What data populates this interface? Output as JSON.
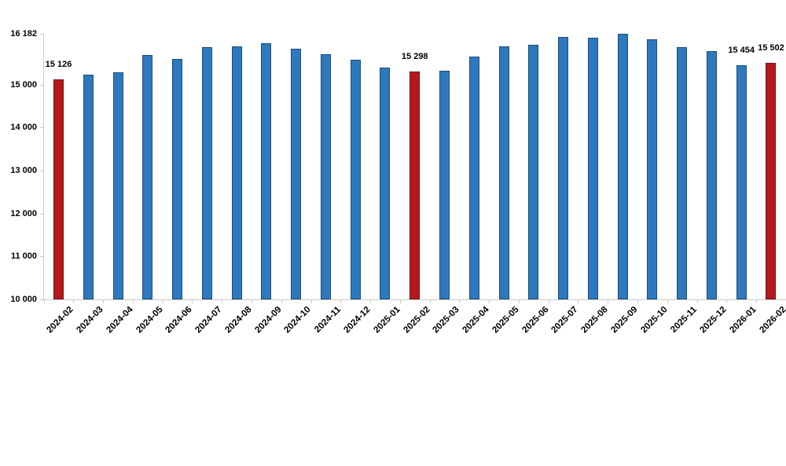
{
  "chart_data": {
    "type": "bar",
    "title": "",
    "xlabel": "",
    "ylabel": "",
    "grid": false,
    "legend": "none",
    "ylim": [
      10000,
      16182
    ],
    "categories": [
      "2024-02",
      "2024-03",
      "2024-04",
      "2024-05",
      "2024-06",
      "2024-07",
      "2024-08",
      "2024-09",
      "2024-10",
      "2024-11",
      "2024-12",
      "2025-01",
      "2025-02",
      "2025-03",
      "2025-04",
      "2025-05",
      "2025-06",
      "2025-07",
      "2025-08",
      "2025-09",
      "2025-10",
      "2025-11",
      "2025-12",
      "2026-01",
      "2026-02"
    ],
    "values": [
      15126,
      15225,
      15290,
      15680,
      15605,
      15880,
      15890,
      15970,
      15835,
      15715,
      15575,
      15390,
      15298,
      15330,
      15650,
      15895,
      15920,
      16105,
      16085,
      16182,
      16050,
      15880,
      15785,
      15454,
      15502
    ],
    "highlight_indices": [
      0,
      12,
      24
    ],
    "data_labels": [
      {
        "index": 0,
        "text": "15 126"
      },
      {
        "index": 12,
        "text": "15 298"
      },
      {
        "index": 23,
        "text": "15 454"
      },
      {
        "index": 24,
        "text": "15 502"
      }
    ],
    "y_ticks": [
      {
        "value": 16182,
        "label": "16 182"
      },
      {
        "value": 15000,
        "label": "15 000"
      },
      {
        "value": 14000,
        "label": "14 000"
      },
      {
        "value": 13000,
        "label": "13 000"
      },
      {
        "value": 12000,
        "label": "12 000"
      },
      {
        "value": 11000,
        "label": "11 000"
      },
      {
        "value": 10000,
        "label": "10 000"
      }
    ],
    "colors": {
      "bar_blue": "#2e79bd",
      "bar_blue_border": "#1d4e77",
      "bar_red": "#b5181c",
      "bar_red_border": "#770f12",
      "axis": "#c9c9c9",
      "text": "#000000"
    }
  },
  "layout_note": "monthly bar chart, highlighted February bars in red, no title, white background"
}
